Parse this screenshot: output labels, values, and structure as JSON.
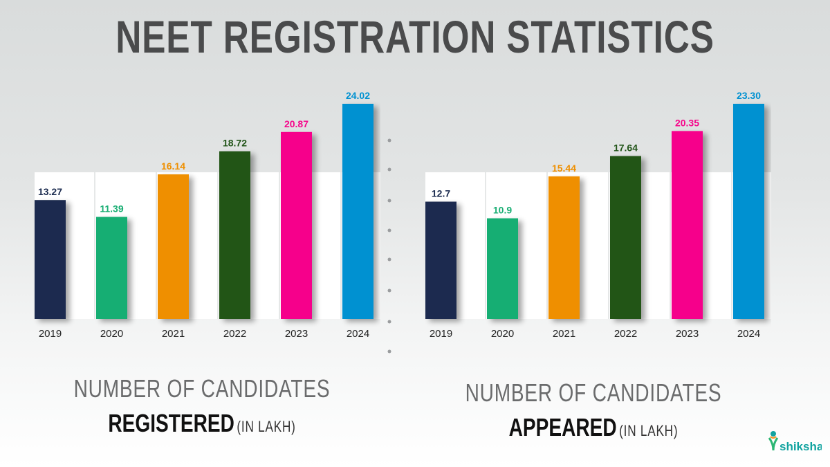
{
  "title": "NEET REGISTRATION STATISTICS",
  "chart_data": [
    {
      "type": "bar",
      "categories": [
        "2019",
        "2020",
        "2021",
        "2022",
        "2023",
        "2024"
      ],
      "values": [
        13.27,
        11.39,
        16.14,
        18.72,
        20.87,
        24.02
      ],
      "value_labels": [
        "13.27",
        "11.39",
        "16.14",
        "18.72",
        "20.87",
        "24.02"
      ],
      "colors": [
        "#1b2b4f",
        "#19ae73",
        "#ef8f00",
        "#215418",
        "#f6068b",
        "#0091d1"
      ],
      "ylim": [
        0,
        24.02
      ],
      "caption_line1": "NUMBER OF CANDIDATES",
      "caption_bold": "REGISTERED",
      "caption_unit": "(IN LAKH)"
    },
    {
      "type": "bar",
      "categories": [
        "2019",
        "2020",
        "2021",
        "2022",
        "2023",
        "2024"
      ],
      "values": [
        12.7,
        10.9,
        15.44,
        17.64,
        20.35,
        23.3
      ],
      "value_labels": [
        "12.7",
        "10.9",
        "15.44",
        "17.64",
        "20.35",
        "23.30"
      ],
      "colors": [
        "#1b2b4f",
        "#19ae73",
        "#ef8f00",
        "#215418",
        "#f6068b",
        "#0091d1"
      ],
      "ylim": [
        0,
        23.3
      ],
      "caption_line1": "NUMBER OF CANDIDATES",
      "caption_bold": "APPEARED",
      "caption_unit": "(IN LAKH)"
    }
  ],
  "brand": {
    "name": "shiksha",
    "colors": {
      "teal": "#12a3a0",
      "green": "#2bb673",
      "orange": "#f7941d"
    }
  }
}
